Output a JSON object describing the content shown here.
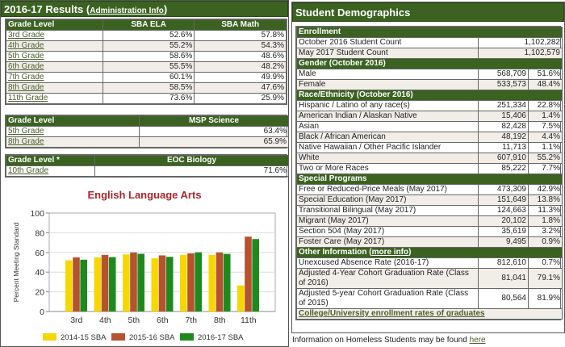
{
  "results": {
    "title": "2016-17 Results (",
    "title_link": "Administration Info",
    "title_end": ")",
    "sba": {
      "headers": [
        "Grade Level",
        "SBA ELA",
        "SBA Math"
      ],
      "rows": [
        [
          "3rd Grade",
          "52.6%",
          "57.8%"
        ],
        [
          "4th Grade",
          "55.2%",
          "54.3%"
        ],
        [
          "5th Grade",
          "58.6%",
          "48.6%"
        ],
        [
          "6th Grade",
          "55.5%",
          "48.2%"
        ],
        [
          "7th Grade",
          "60.1%",
          "49.9%"
        ],
        [
          "8th Grade",
          "58.5%",
          "47.6%"
        ],
        [
          "11th Grade",
          "73.6%",
          "25.9%"
        ]
      ]
    },
    "msp": {
      "headers": [
        "Grade Level",
        "MSP Science"
      ],
      "rows": [
        [
          "5th Grade",
          "63.4%"
        ],
        [
          "8th Grade",
          "65.9%"
        ]
      ]
    },
    "eoc": {
      "headers": [
        "Grade Level *",
        "EOC Biology"
      ],
      "rows": [
        [
          "10th Grade",
          "71.6%"
        ]
      ]
    }
  },
  "chart_data": {
    "type": "bar",
    "title": "English Language Arts",
    "xlabel": "",
    "ylabel": "Percent Meeting Standard",
    "ylim": [
      0,
      100
    ],
    "yticks": [
      0,
      20,
      40,
      60,
      80,
      100
    ],
    "categories": [
      "3rd",
      "4th",
      "5th",
      "6th",
      "7th",
      "8th",
      "11th"
    ],
    "series": [
      {
        "name": "2014-15 SBA",
        "color": "#f5d800",
        "values": [
          52,
          55,
          58,
          54,
          57.5,
          57.5,
          26.5
        ]
      },
      {
        "name": "2015-16 SBA",
        "color": "#b5532f",
        "values": [
          55,
          57.5,
          60,
          57,
          59,
          60,
          76
        ]
      },
      {
        "name": "2016-17 SBA",
        "color": "#1e8a1e",
        "values": [
          52.6,
          55.2,
          58.6,
          55.5,
          60.1,
          58.5,
          73.6
        ]
      }
    ],
    "legend": "bottom",
    "grid": true
  },
  "demographics": {
    "title": "Student Demographics",
    "sections": [
      {
        "header": "Enrollment",
        "rows": [
          [
            "October 2016 Student Count",
            "1,102,282"
          ],
          [
            "May 2017 Student Count",
            "1,102,579"
          ]
        ]
      },
      {
        "header": "Gender (October 2016)",
        "rows": [
          [
            "Male",
            "568,709",
            "51.6%"
          ],
          [
            "Female",
            "533,573",
            "48.4%"
          ]
        ]
      },
      {
        "header": "Race/Ethnicity (October 2016)",
        "rows": [
          [
            "Hispanic / Latino of any race(s)",
            "251,334",
            "22.8%"
          ],
          [
            "American Indian / Alaskan Native",
            "15,406",
            "1.4%"
          ],
          [
            "Asian",
            "82,428",
            "7.5%"
          ],
          [
            "Black / African American",
            "48,192",
            "4.4%"
          ],
          [
            "Native Hawaiian / Other Pacific Islander",
            "11,713",
            "1.1%"
          ],
          [
            "White",
            "607,910",
            "55.2%"
          ],
          [
            "Two or More Races",
            "85,222",
            "7.7%"
          ]
        ]
      },
      {
        "header": "Special Programs",
        "rows": [
          [
            "Free or Reduced-Price Meals (May 2017)",
            "473,309",
            "42.9%"
          ],
          [
            "Special Education (May 2017)",
            "151,649",
            "13.8%"
          ],
          [
            "Transitional Bilingual (May 2017)",
            "124,663",
            "11.3%"
          ],
          [
            "Migrant (May 2017)",
            "20,102",
            "1.8%"
          ],
          [
            "Section 504 (May 2017)",
            "35,619",
            "3.2%"
          ],
          [
            "Foster Care (May 2017)",
            "9,495",
            "0.9%"
          ]
        ]
      },
      {
        "header": "Other Information (",
        "header_link": "more info",
        "header_end": ")",
        "rows": [
          [
            "Unexcused Absence Rate (2016-17)",
            "812,610",
            "0.7%"
          ],
          [
            "Adjusted 4-Year Cohort Graduation Rate (Class of 2016)",
            "81,041",
            "79.1%"
          ],
          [
            "Adjusted 5-year Cohort Graduation Rate (Class of 2015)",
            "80,564",
            "81.9%"
          ]
        ]
      }
    ],
    "footer_link": "College/University enrollment rates of graduates"
  },
  "homeless": {
    "text": "Information on Homeless Students may be found ",
    "link": "here"
  }
}
